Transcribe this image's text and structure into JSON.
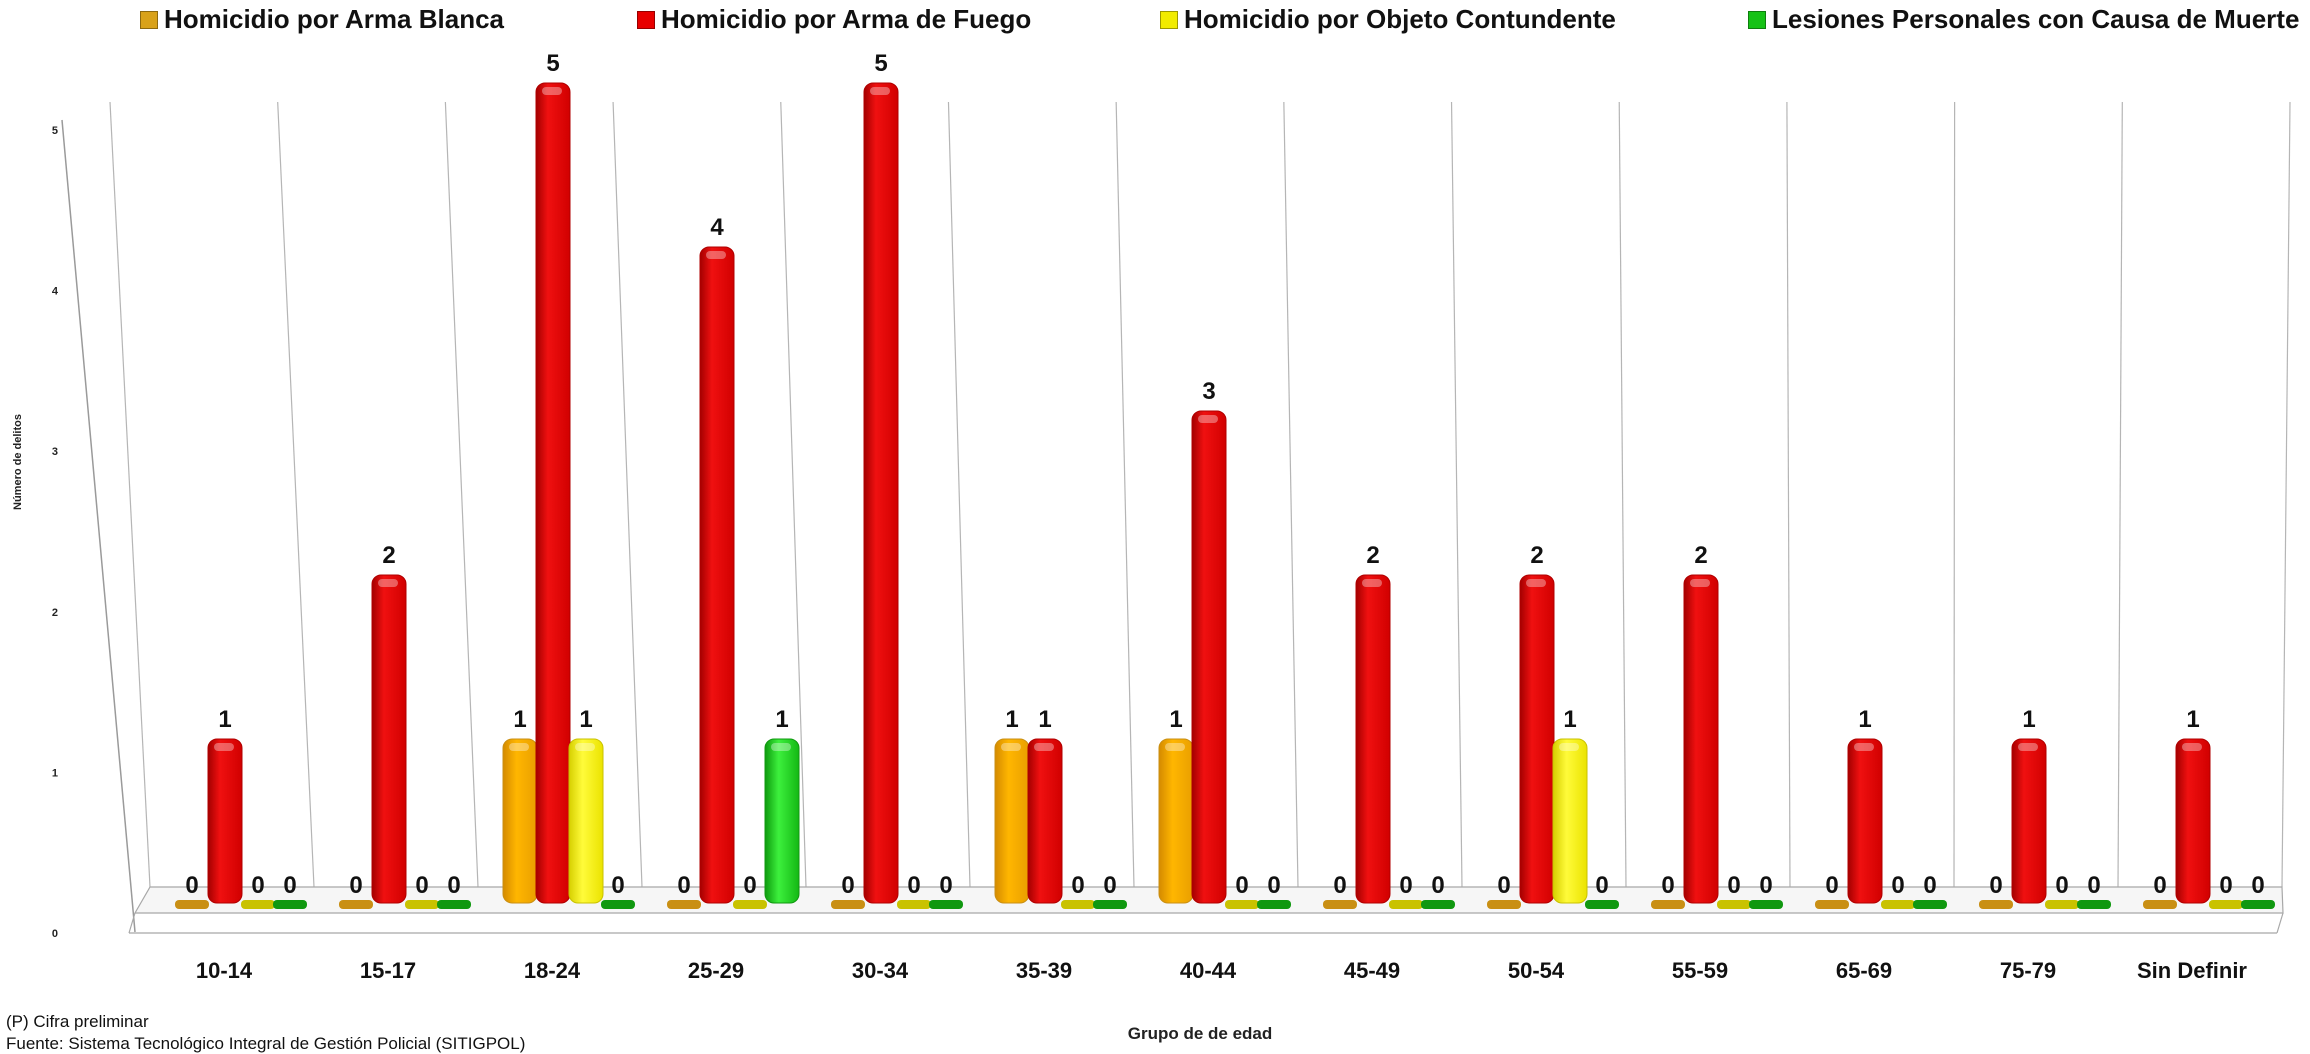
{
  "chart_data": {
    "type": "bar",
    "xlabel": "Grupo de de edad",
    "ylabel": "Número de delitos",
    "ylim": [
      0,
      5
    ],
    "yticks": [
      "0",
      "1",
      "2",
      "3",
      "4",
      "5"
    ],
    "grid": true,
    "legend_position": "top",
    "categories": [
      "10-14",
      "15-17",
      "18-24",
      "25-29",
      "30-34",
      "35-39",
      "40-44",
      "45-49",
      "50-54",
      "55-59",
      "65-69",
      "75-79",
      "Sin Definir"
    ],
    "series": [
      {
        "name": "Homicidio por Arma Blanca",
        "color": "#f5a800",
        "values": [
          0,
          0,
          1,
          0,
          0,
          1,
          1,
          0,
          0,
          0,
          0,
          0,
          0
        ]
      },
      {
        "name": "Homicidio por Arma de Fuego",
        "color": "#e80000",
        "values": [
          1,
          2,
          5,
          4,
          5,
          1,
          3,
          2,
          2,
          2,
          1,
          1,
          1
        ]
      },
      {
        "name": "Homicidio por Objeto Contundente",
        "color": "#f2ec00",
        "values": [
          0,
          0,
          1,
          0,
          0,
          0,
          0,
          0,
          1,
          0,
          0,
          0,
          0
        ]
      },
      {
        "name": "Lesiones Personales con Causa de Muerte",
        "color": "#16c216",
        "values": [
          0,
          0,
          0,
          1,
          0,
          0,
          0,
          0,
          0,
          0,
          0,
          0,
          0
        ]
      }
    ]
  },
  "footnotes": {
    "note": "(P) Cifra preliminar",
    "source": "Fuente: Sistema Tecnológico Integral de Gestión Policial (SITIGPOL)"
  }
}
